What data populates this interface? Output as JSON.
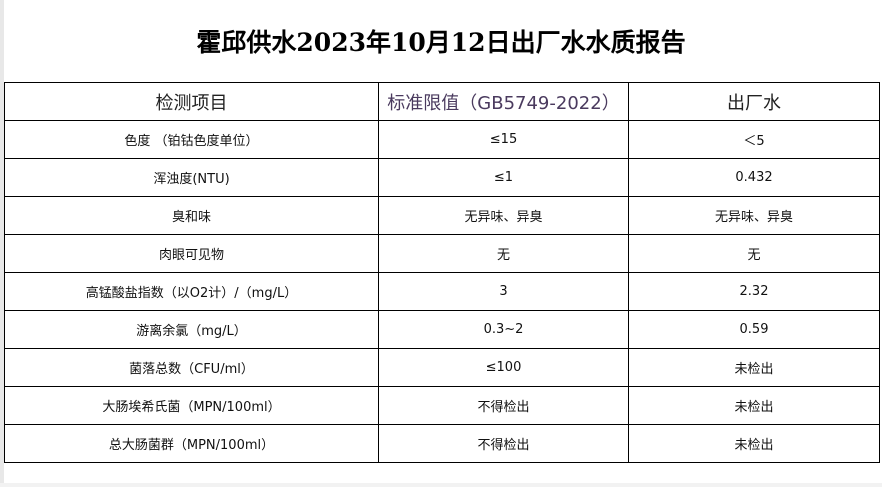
{
  "title": "霍邱供水2023年10月12日出厂水水质报告",
  "columns": [
    "检测项目",
    "标准限值（GB5749-2022）",
    "出厂水"
  ],
  "rows": [
    {
      "item": "色度 （铂钴色度单位）",
      "standard": "≤15",
      "value": "＜5"
    },
    {
      "item": "浑浊度(NTU)",
      "standard": "≤1",
      "value": "0.432"
    },
    {
      "item": "臭和味",
      "standard": "无异味、异臭",
      "value": "无异味、异臭"
    },
    {
      "item": "肉眼可见物",
      "standard": "无",
      "value": "无"
    },
    {
      "item": "高锰酸盐指数（以O2计）/（mg/L）",
      "standard": "3",
      "value": "2.32"
    },
    {
      "item": "游离余氯（mg/L）",
      "standard": "0.3~2",
      "value": "0.59"
    },
    {
      "item": "菌落总数（CFU/ml）",
      "standard": "≤100",
      "value": "未检出"
    },
    {
      "item": "大肠埃希氏菌（MPN/100ml）",
      "standard": "不得检出",
      "value": "未检出"
    },
    {
      "item": "总大肠菌群（MPN/100ml）",
      "standard": "不得检出",
      "value": "未检出"
    }
  ]
}
